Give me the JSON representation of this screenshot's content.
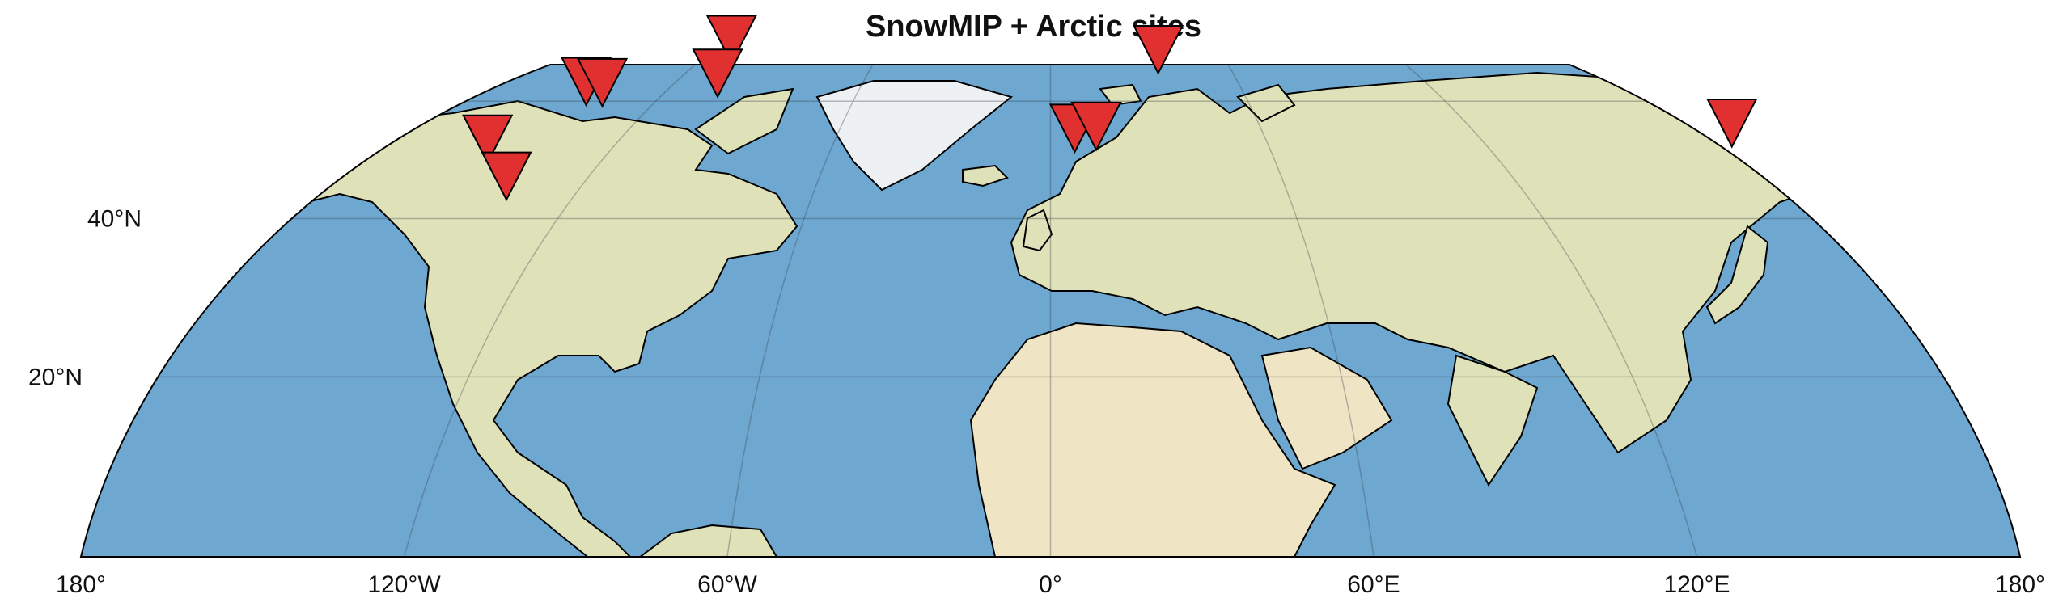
{
  "title": "SnowMIP + Arctic sites",
  "colors": {
    "ocean": "#6ea7cf",
    "land": "#dfe2b8",
    "ice": "#eef1f4",
    "marker": "#e03030",
    "outline": "#000000",
    "grid": "#3c4650"
  },
  "map": {
    "projection": "equal-area",
    "extent": {
      "lon": [
        -180,
        180
      ],
      "lat": [
        0,
        90
      ]
    },
    "lon_ticks": [
      {
        "value": -180,
        "label": "180°"
      },
      {
        "value": -120,
        "label": "120°W"
      },
      {
        "value": -60,
        "label": "60°W"
      },
      {
        "value": 0,
        "label": "0°"
      },
      {
        "value": 60,
        "label": "60°E"
      },
      {
        "value": 120,
        "label": "120°E"
      },
      {
        "value": 180,
        "label": "180°"
      }
    ],
    "lat_ticks": [
      {
        "value": 40,
        "label": "40°N"
      },
      {
        "value": 20,
        "label": "20°N"
      }
    ]
  },
  "sites": [
    {
      "lon": -59.2,
      "lat": 78.8
    },
    {
      "lon": -61.8,
      "lat": 66.2
    },
    {
      "lon": -86.2,
      "lat": 64.0
    },
    {
      "lon": -83.2,
      "lat": 63.7
    },
    {
      "lon": -104.5,
      "lat": 51.8
    },
    {
      "lon": -101.0,
      "lat": 45.5
    },
    {
      "lon": 20.0,
      "lat": 74.0
    },
    {
      "lon": 4.5,
      "lat": 53.8
    },
    {
      "lon": 8.5,
      "lat": 54.2
    },
    {
      "lon": 126.5,
      "lat": 54.8
    }
  ]
}
